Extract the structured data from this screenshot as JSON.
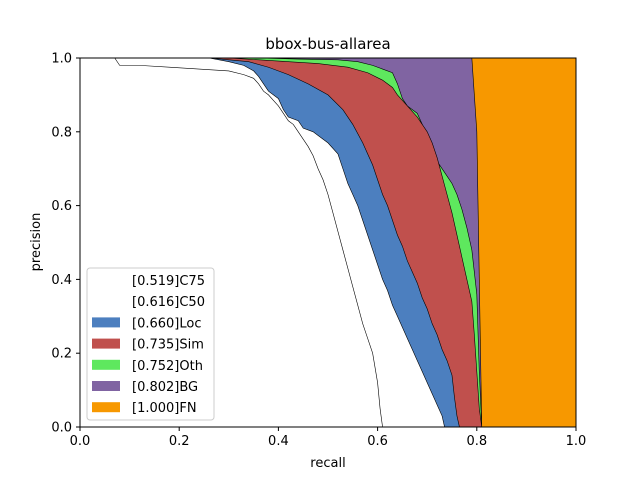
{
  "chart_data": {
    "type": "area",
    "title": "bbox-bus-allarea",
    "xlabel": "recall",
    "ylabel": "precision",
    "xlim": [
      0,
      1
    ],
    "ylim": [
      0,
      1
    ],
    "xticks": [
      "0.0",
      "0.2",
      "0.4",
      "0.6",
      "0.8",
      "1.0"
    ],
    "yticks": [
      "0.0",
      "0.2",
      "0.4",
      "0.6",
      "0.8",
      "1.0"
    ],
    "grid": false,
    "legend_position": "lower-left",
    "series": [
      {
        "name": "[0.519]C75",
        "color": "#ffffff",
        "points": [
          [
            0,
            1.0
          ],
          [
            0.07,
            1.0
          ],
          [
            0.08,
            0.98
          ],
          [
            0.12,
            0.98
          ],
          [
            0.18,
            0.975
          ],
          [
            0.24,
            0.97
          ],
          [
            0.3,
            0.965
          ],
          [
            0.33,
            0.955
          ],
          [
            0.35,
            0.945
          ],
          [
            0.36,
            0.93
          ],
          [
            0.37,
            0.91
          ],
          [
            0.38,
            0.9
          ],
          [
            0.39,
            0.885
          ],
          [
            0.4,
            0.87
          ],
          [
            0.41,
            0.85
          ],
          [
            0.42,
            0.83
          ],
          [
            0.43,
            0.82
          ],
          [
            0.44,
            0.8
          ],
          [
            0.45,
            0.78
          ],
          [
            0.46,
            0.76
          ],
          [
            0.47,
            0.735
          ],
          [
            0.48,
            0.7
          ],
          [
            0.49,
            0.67
          ],
          [
            0.5,
            0.63
          ],
          [
            0.51,
            0.58
          ],
          [
            0.52,
            0.53
          ],
          [
            0.53,
            0.48
          ],
          [
            0.54,
            0.43
          ],
          [
            0.55,
            0.38
          ],
          [
            0.56,
            0.33
          ],
          [
            0.57,
            0.28
          ],
          [
            0.58,
            0.24
          ],
          [
            0.59,
            0.2
          ],
          [
            0.6,
            0.12
          ],
          [
            0.605,
            0.05
          ],
          [
            0.61,
            0.0
          ]
        ]
      },
      {
        "name": "[0.616]C50",
        "color": "#ffffff",
        "points": [
          [
            0,
            1.0
          ],
          [
            0.26,
            1.0
          ],
          [
            0.3,
            0.99
          ],
          [
            0.33,
            0.98
          ],
          [
            0.35,
            0.965
          ],
          [
            0.36,
            0.95
          ],
          [
            0.37,
            0.93
          ],
          [
            0.38,
            0.91
          ],
          [
            0.4,
            0.89
          ],
          [
            0.41,
            0.86
          ],
          [
            0.42,
            0.84
          ],
          [
            0.44,
            0.83
          ],
          [
            0.45,
            0.81
          ],
          [
            0.47,
            0.8
          ],
          [
            0.48,
            0.79
          ],
          [
            0.5,
            0.77
          ],
          [
            0.52,
            0.74
          ],
          [
            0.53,
            0.7
          ],
          [
            0.54,
            0.66
          ],
          [
            0.55,
            0.63
          ],
          [
            0.56,
            0.6
          ],
          [
            0.57,
            0.56
          ],
          [
            0.58,
            0.52
          ],
          [
            0.59,
            0.48
          ],
          [
            0.6,
            0.44
          ],
          [
            0.61,
            0.4
          ],
          [
            0.62,
            0.37
          ],
          [
            0.63,
            0.33
          ],
          [
            0.64,
            0.3
          ],
          [
            0.65,
            0.27
          ],
          [
            0.66,
            0.24
          ],
          [
            0.67,
            0.21
          ],
          [
            0.68,
            0.18
          ],
          [
            0.69,
            0.15
          ],
          [
            0.7,
            0.12
          ],
          [
            0.71,
            0.09
          ],
          [
            0.72,
            0.06
          ],
          [
            0.73,
            0.03
          ],
          [
            0.735,
            0.0
          ]
        ]
      },
      {
        "name": "[0.660]Loc",
        "color": "#4c7fbf",
        "points": [
          [
            0,
            1.0
          ],
          [
            0.26,
            1.0
          ],
          [
            0.3,
            0.995
          ],
          [
            0.34,
            0.99
          ],
          [
            0.38,
            0.975
          ],
          [
            0.42,
            0.955
          ],
          [
            0.46,
            0.93
          ],
          [
            0.5,
            0.9
          ],
          [
            0.53,
            0.86
          ],
          [
            0.55,
            0.82
          ],
          [
            0.57,
            0.77
          ],
          [
            0.59,
            0.71
          ],
          [
            0.6,
            0.67
          ],
          [
            0.61,
            0.63
          ],
          [
            0.62,
            0.6
          ],
          [
            0.63,
            0.56
          ],
          [
            0.64,
            0.52
          ],
          [
            0.65,
            0.49
          ],
          [
            0.66,
            0.45
          ],
          [
            0.67,
            0.42
          ],
          [
            0.68,
            0.39
          ],
          [
            0.69,
            0.35
          ],
          [
            0.7,
            0.32
          ],
          [
            0.71,
            0.28
          ],
          [
            0.72,
            0.25
          ],
          [
            0.73,
            0.21
          ],
          [
            0.74,
            0.18
          ],
          [
            0.75,
            0.14
          ],
          [
            0.755,
            0.08
          ],
          [
            0.76,
            0.03
          ],
          [
            0.765,
            0.0
          ]
        ]
      },
      {
        "name": "[0.735]Sim",
        "color": "#c0504d",
        "points": [
          [
            0,
            1.0
          ],
          [
            0.26,
            1.0
          ],
          [
            0.3,
            1.0
          ],
          [
            0.36,
            0.995
          ],
          [
            0.42,
            0.99
          ],
          [
            0.48,
            0.985
          ],
          [
            0.54,
            0.975
          ],
          [
            0.58,
            0.96
          ],
          [
            0.61,
            0.94
          ],
          [
            0.63,
            0.92
          ],
          [
            0.64,
            0.9
          ],
          [
            0.66,
            0.87
          ],
          [
            0.68,
            0.84
          ],
          [
            0.7,
            0.8
          ],
          [
            0.71,
            0.77
          ],
          [
            0.72,
            0.73
          ],
          [
            0.73,
            0.68
          ],
          [
            0.74,
            0.63
          ],
          [
            0.75,
            0.58
          ],
          [
            0.76,
            0.52
          ],
          [
            0.77,
            0.46
          ],
          [
            0.78,
            0.4
          ],
          [
            0.79,
            0.34
          ],
          [
            0.795,
            0.25
          ],
          [
            0.8,
            0.15
          ],
          [
            0.805,
            0.05
          ],
          [
            0.81,
            0.0
          ]
        ]
      },
      {
        "name": "[0.752]Oth",
        "color": "#5ee85e",
        "points": [
          [
            0,
            1.0
          ],
          [
            0.26,
            1.0
          ],
          [
            0.36,
            1.0
          ],
          [
            0.44,
            0.997
          ],
          [
            0.52,
            0.995
          ],
          [
            0.56,
            0.99
          ],
          [
            0.59,
            0.98
          ],
          [
            0.61,
            0.97
          ],
          [
            0.63,
            0.96
          ],
          [
            0.64,
            0.93
          ],
          [
            0.65,
            0.89
          ],
          [
            0.66,
            0.87
          ],
          [
            0.67,
            0.86
          ],
          [
            0.68,
            0.85
          ],
          [
            0.69,
            0.82
          ],
          [
            0.7,
            0.78
          ],
          [
            0.71,
            0.74
          ],
          [
            0.72,
            0.72
          ],
          [
            0.73,
            0.7
          ],
          [
            0.74,
            0.68
          ],
          [
            0.75,
            0.66
          ],
          [
            0.76,
            0.63
          ],
          [
            0.77,
            0.59
          ],
          [
            0.78,
            0.54
          ],
          [
            0.79,
            0.48
          ],
          [
            0.8,
            0.36
          ],
          [
            0.805,
            0.15
          ],
          [
            0.81,
            0.0
          ]
        ]
      },
      {
        "name": "[0.802]BG",
        "color": "#8064a2",
        "points": [
          [
            0,
            1.0
          ],
          [
            0.79,
            1.0
          ],
          [
            0.8,
            0.8
          ],
          [
            0.805,
            0.4
          ],
          [
            0.81,
            0.0
          ]
        ]
      },
      {
        "name": "[1.000]FN",
        "color": "#f79800",
        "points": [
          [
            0,
            1.0
          ],
          [
            1.0,
            1.0
          ],
          [
            1.0,
            0.0
          ]
        ]
      }
    ]
  }
}
